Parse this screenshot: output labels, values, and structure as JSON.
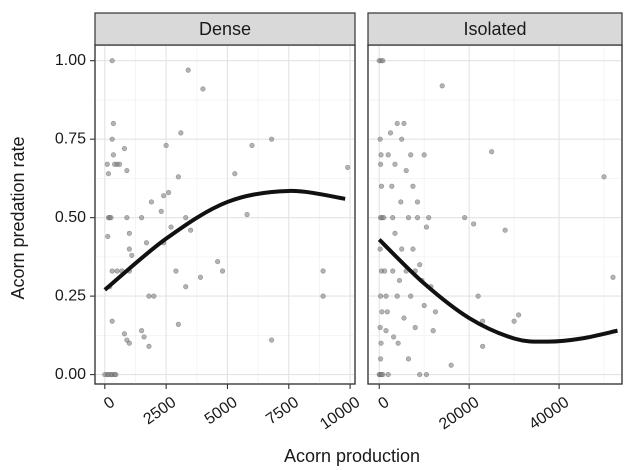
{
  "chart_data": {
    "type": "scatter",
    "xlabel": "Acorn production",
    "ylabel": "Acorn predation rate",
    "grid": true,
    "y_ticks": [
      0,
      0.25,
      0.5,
      0.75,
      1.0
    ],
    "y_tick_labels": [
      "0.00",
      "0.25",
      "0.50",
      "0.75",
      "1.00"
    ],
    "ylim": [
      -0.03,
      1.05
    ],
    "panels": [
      {
        "title": "Dense",
        "xlim": [
          -400,
          10200
        ],
        "x_ticks": [
          0,
          2500,
          5000,
          7500,
          10000
        ],
        "x_tick_labels": [
          "0",
          "2500",
          "5000",
          "7500",
          "10000"
        ],
        "points": [
          [
            0,
            0
          ],
          [
            100,
            0
          ],
          [
            150,
            0
          ],
          [
            250,
            0
          ],
          [
            300,
            0
          ],
          [
            400,
            0
          ],
          [
            450,
            0
          ],
          [
            120,
            0.44
          ],
          [
            150,
            0.5
          ],
          [
            200,
            0.5
          ],
          [
            250,
            0.5
          ],
          [
            100,
            0.67
          ],
          [
            150,
            0.64
          ],
          [
            300,
            1.0
          ],
          [
            350,
            0.8
          ],
          [
            300,
            0.75
          ],
          [
            350,
            0.7
          ],
          [
            400,
            0.67
          ],
          [
            500,
            0.67
          ],
          [
            600,
            0.67
          ],
          [
            300,
            0.17
          ],
          [
            200,
            0.28
          ],
          [
            300,
            0.33
          ],
          [
            500,
            0.33
          ],
          [
            700,
            0.33
          ],
          [
            800,
            0.72
          ],
          [
            900,
            0.65
          ],
          [
            900,
            0.5
          ],
          [
            1000,
            0.45
          ],
          [
            1000,
            0.4
          ],
          [
            800,
            0.13
          ],
          [
            900,
            0.11
          ],
          [
            1000,
            0.1
          ],
          [
            1000,
            0.33
          ],
          [
            1100,
            0.38
          ],
          [
            1500,
            0.14
          ],
          [
            1600,
            0.12
          ],
          [
            1500,
            0.5
          ],
          [
            1700,
            0.42
          ],
          [
            1800,
            0.09
          ],
          [
            1800,
            0.25
          ],
          [
            2000,
            0.25
          ],
          [
            1900,
            0.55
          ],
          [
            2300,
            0.52
          ],
          [
            2400,
            0.57
          ],
          [
            2400,
            0.42
          ],
          [
            2500,
            0.73
          ],
          [
            2600,
            0.58
          ],
          [
            2700,
            0.47
          ],
          [
            2900,
            0.33
          ],
          [
            3000,
            0.16
          ],
          [
            3000,
            0.63
          ],
          [
            3100,
            0.77
          ],
          [
            3300,
            0.28
          ],
          [
            3300,
            0.5
          ],
          [
            3400,
            0.97
          ],
          [
            3500,
            0.46
          ],
          [
            3900,
            0.31
          ],
          [
            4000,
            0.91
          ],
          [
            4600,
            0.36
          ],
          [
            4800,
            0.33
          ],
          [
            5300,
            0.64
          ],
          [
            5800,
            0.51
          ],
          [
            6000,
            0.73
          ],
          [
            6800,
            0.75
          ],
          [
            6800,
            0.11
          ],
          [
            8900,
            0.33
          ],
          [
            8900,
            0.25
          ],
          [
            9900,
            0.66
          ]
        ],
        "fit": [
          [
            0,
            0.27
          ],
          [
            2500,
            0.433
          ],
          [
            5000,
            0.55
          ],
          [
            7500,
            0.585
          ],
          [
            9800,
            0.56
          ]
        ]
      },
      {
        "title": "Isolated",
        "xlim": [
          -2500,
          54000
        ],
        "x_ticks": [
          0,
          20000,
          40000
        ],
        "x_tick_labels": [
          "0",
          "20000",
          "40000"
        ],
        "points": [
          [
            0,
            1.0
          ],
          [
            400,
            1.0
          ],
          [
            800,
            1.0
          ],
          [
            200,
            0.75
          ],
          [
            400,
            0.7
          ],
          [
            300,
            0.67
          ],
          [
            500,
            0.6
          ],
          [
            300,
            0.5
          ],
          [
            600,
            0.5
          ],
          [
            200,
            0.4
          ],
          [
            500,
            0.33
          ],
          [
            300,
            0.25
          ],
          [
            600,
            0.2
          ],
          [
            200,
            0.15
          ],
          [
            400,
            0.1
          ],
          [
            300,
            0.05
          ],
          [
            0,
            0.0
          ],
          [
            200,
            0.0
          ],
          [
            500,
            0.0
          ],
          [
            800,
            0.0
          ],
          [
            1000,
            0.5
          ],
          [
            1200,
            0.33
          ],
          [
            1500,
            0.25
          ],
          [
            1500,
            0.14
          ],
          [
            1800,
            0.2
          ],
          [
            2000,
            0.0
          ],
          [
            2000,
            0.7
          ],
          [
            2500,
            0.77
          ],
          [
            2800,
            0.6
          ],
          [
            3000,
            0.5
          ],
          [
            3000,
            0.33
          ],
          [
            3200,
            0.12
          ],
          [
            3500,
            0.67
          ],
          [
            3500,
            0.45
          ],
          [
            4000,
            0.8
          ],
          [
            4000,
            0.25
          ],
          [
            4200,
            0.1
          ],
          [
            4500,
            0.3
          ],
          [
            4800,
            0.55
          ],
          [
            5000,
            0.75
          ],
          [
            5000,
            0.4
          ],
          [
            5500,
            0.8
          ],
          [
            5500,
            0.18
          ],
          [
            6000,
            0.33
          ],
          [
            6000,
            0.65
          ],
          [
            6500,
            0.5
          ],
          [
            6500,
            0.05
          ],
          [
            7000,
            0.7
          ],
          [
            7000,
            0.25
          ],
          [
            7500,
            0.6
          ],
          [
            7500,
            0.4
          ],
          [
            8000,
            0.15
          ],
          [
            8000,
            0.33
          ],
          [
            8500,
            0.5
          ],
          [
            8500,
            0.55
          ],
          [
            9000,
            0.35
          ],
          [
            9000,
            0.0
          ],
          [
            9500,
            0.3
          ],
          [
            10000,
            0.7
          ],
          [
            10000,
            0.22
          ],
          [
            10500,
            0.47
          ],
          [
            10500,
            0.0
          ],
          [
            11000,
            0.5
          ],
          [
            11500,
            0.28
          ],
          [
            12000,
            0.14
          ],
          [
            12500,
            0.2
          ],
          [
            14000,
            0.92
          ],
          [
            16000,
            0.03
          ],
          [
            19000,
            0.5
          ],
          [
            21000,
            0.48
          ],
          [
            22000,
            0.25
          ],
          [
            23000,
            0.17
          ],
          [
            23000,
            0.09
          ],
          [
            25000,
            0.71
          ],
          [
            28000,
            0.46
          ],
          [
            30000,
            0.17
          ],
          [
            31000,
            0.19
          ],
          [
            50000,
            0.63
          ],
          [
            52000,
            0.31
          ]
        ],
        "fit": [
          [
            0,
            0.43
          ],
          [
            10000,
            0.29
          ],
          [
            20000,
            0.18
          ],
          [
            30000,
            0.115
          ],
          [
            37500,
            0.105
          ],
          [
            45000,
            0.115
          ],
          [
            53000,
            0.14
          ]
        ]
      }
    ]
  }
}
